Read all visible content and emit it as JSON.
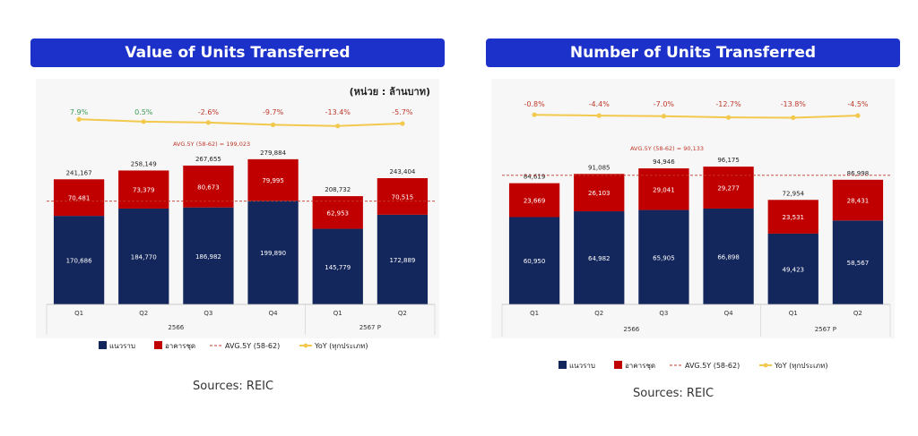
{
  "sources": "Sources: REIC",
  "chart_data": [
    {
      "type": "bar",
      "title": "Value of Units Transferred",
      "unit_label": "(หน่วย : ล้านบาท)",
      "categories": [
        "Q1",
        "Q2",
        "Q3",
        "Q4",
        "Q1",
        "Q2"
      ],
      "groups": [
        {
          "label": "2566",
          "span": 4
        },
        {
          "label": "2567 P",
          "span": 2
        }
      ],
      "series": [
        {
          "name": "แนวราบ",
          "color": "#14275c",
          "values": [
            170686,
            184770,
            186982,
            199890,
            145779,
            172889
          ],
          "labels": [
            "170,686",
            "184,770",
            "186,982",
            "199,890",
            "145,779",
            "172,889"
          ]
        },
        {
          "name": "อาคารชุด",
          "color": "#c00000",
          "values": [
            70481,
            73379,
            80673,
            79995,
            62953,
            70515
          ],
          "labels": [
            "70,481",
            "73,379",
            "80,673",
            "79,995",
            "62,953",
            "70,515"
          ]
        }
      ],
      "totals": [
        "241,167",
        "258,149",
        "267,655",
        "279,884",
        "208,732",
        "243,404"
      ],
      "avg": {
        "name": "AVG.5Y (58-62)",
        "value": 199023,
        "label": "AVG.5Y (58-62) = 199,023"
      },
      "yoy": {
        "name": "YoY (ทุกประเภท)",
        "values": [
          7.9,
          0.5,
          -2.6,
          -9.7,
          -13.4,
          -5.7
        ],
        "labels": [
          "7.9%",
          "0.5%",
          "-2.6%",
          "-9.7%",
          "-13.4%",
          "-5.7%"
        ]
      },
      "ylim": [
        0,
        290000
      ],
      "colors": {
        "positive": "#3d9b56",
        "negative": "#c0392b",
        "yoy_line": "#f2c94c",
        "avg_line": "#c0392b"
      }
    },
    {
      "type": "bar",
      "title": "Number of Units Transferred",
      "categories": [
        "Q1",
        "Q2",
        "Q3",
        "Q4",
        "Q1",
        "Q2"
      ],
      "groups": [
        {
          "label": "2566",
          "span": 4
        },
        {
          "label": "2567 P",
          "span": 2
        }
      ],
      "series": [
        {
          "name": "แนวราบ",
          "color": "#14275c",
          "values": [
            60950,
            64982,
            65905,
            66898,
            49423,
            58567
          ],
          "labels": [
            "60,950",
            "64,982",
            "65,905",
            "66,898",
            "49,423",
            "58,567"
          ]
        },
        {
          "name": "อาคารชุด",
          "color": "#c00000",
          "values": [
            23669,
            26103,
            29041,
            29277,
            23531,
            28431
          ],
          "labels": [
            "23,669",
            "26,103",
            "29,041",
            "29,277",
            "23,531",
            "28,431"
          ]
        }
      ],
      "totals": [
        "84,619",
        "91,085",
        "94,946",
        "96,175",
        "72,954",
        "86,998"
      ],
      "avg": {
        "name": "AVG.5Y (58-62)",
        "value": 90133,
        "label": "AVG.5Y (58-62) = 90,133"
      },
      "yoy": {
        "name": "YoY (ทุกประเภท)",
        "values": [
          -0.8,
          -4.4,
          -7.0,
          -12.7,
          -13.8,
          -4.5
        ],
        "labels": [
          "-0.8%",
          "-4.4%",
          "-7.0%",
          "-12.7%",
          "-13.8%",
          "-4.5%"
        ]
      },
      "ylim": [
        0,
        100000
      ],
      "colors": {
        "positive": "#3d9b56",
        "negative": "#c0392b",
        "yoy_line": "#f2c94c",
        "avg_line": "#c0392b"
      }
    }
  ]
}
